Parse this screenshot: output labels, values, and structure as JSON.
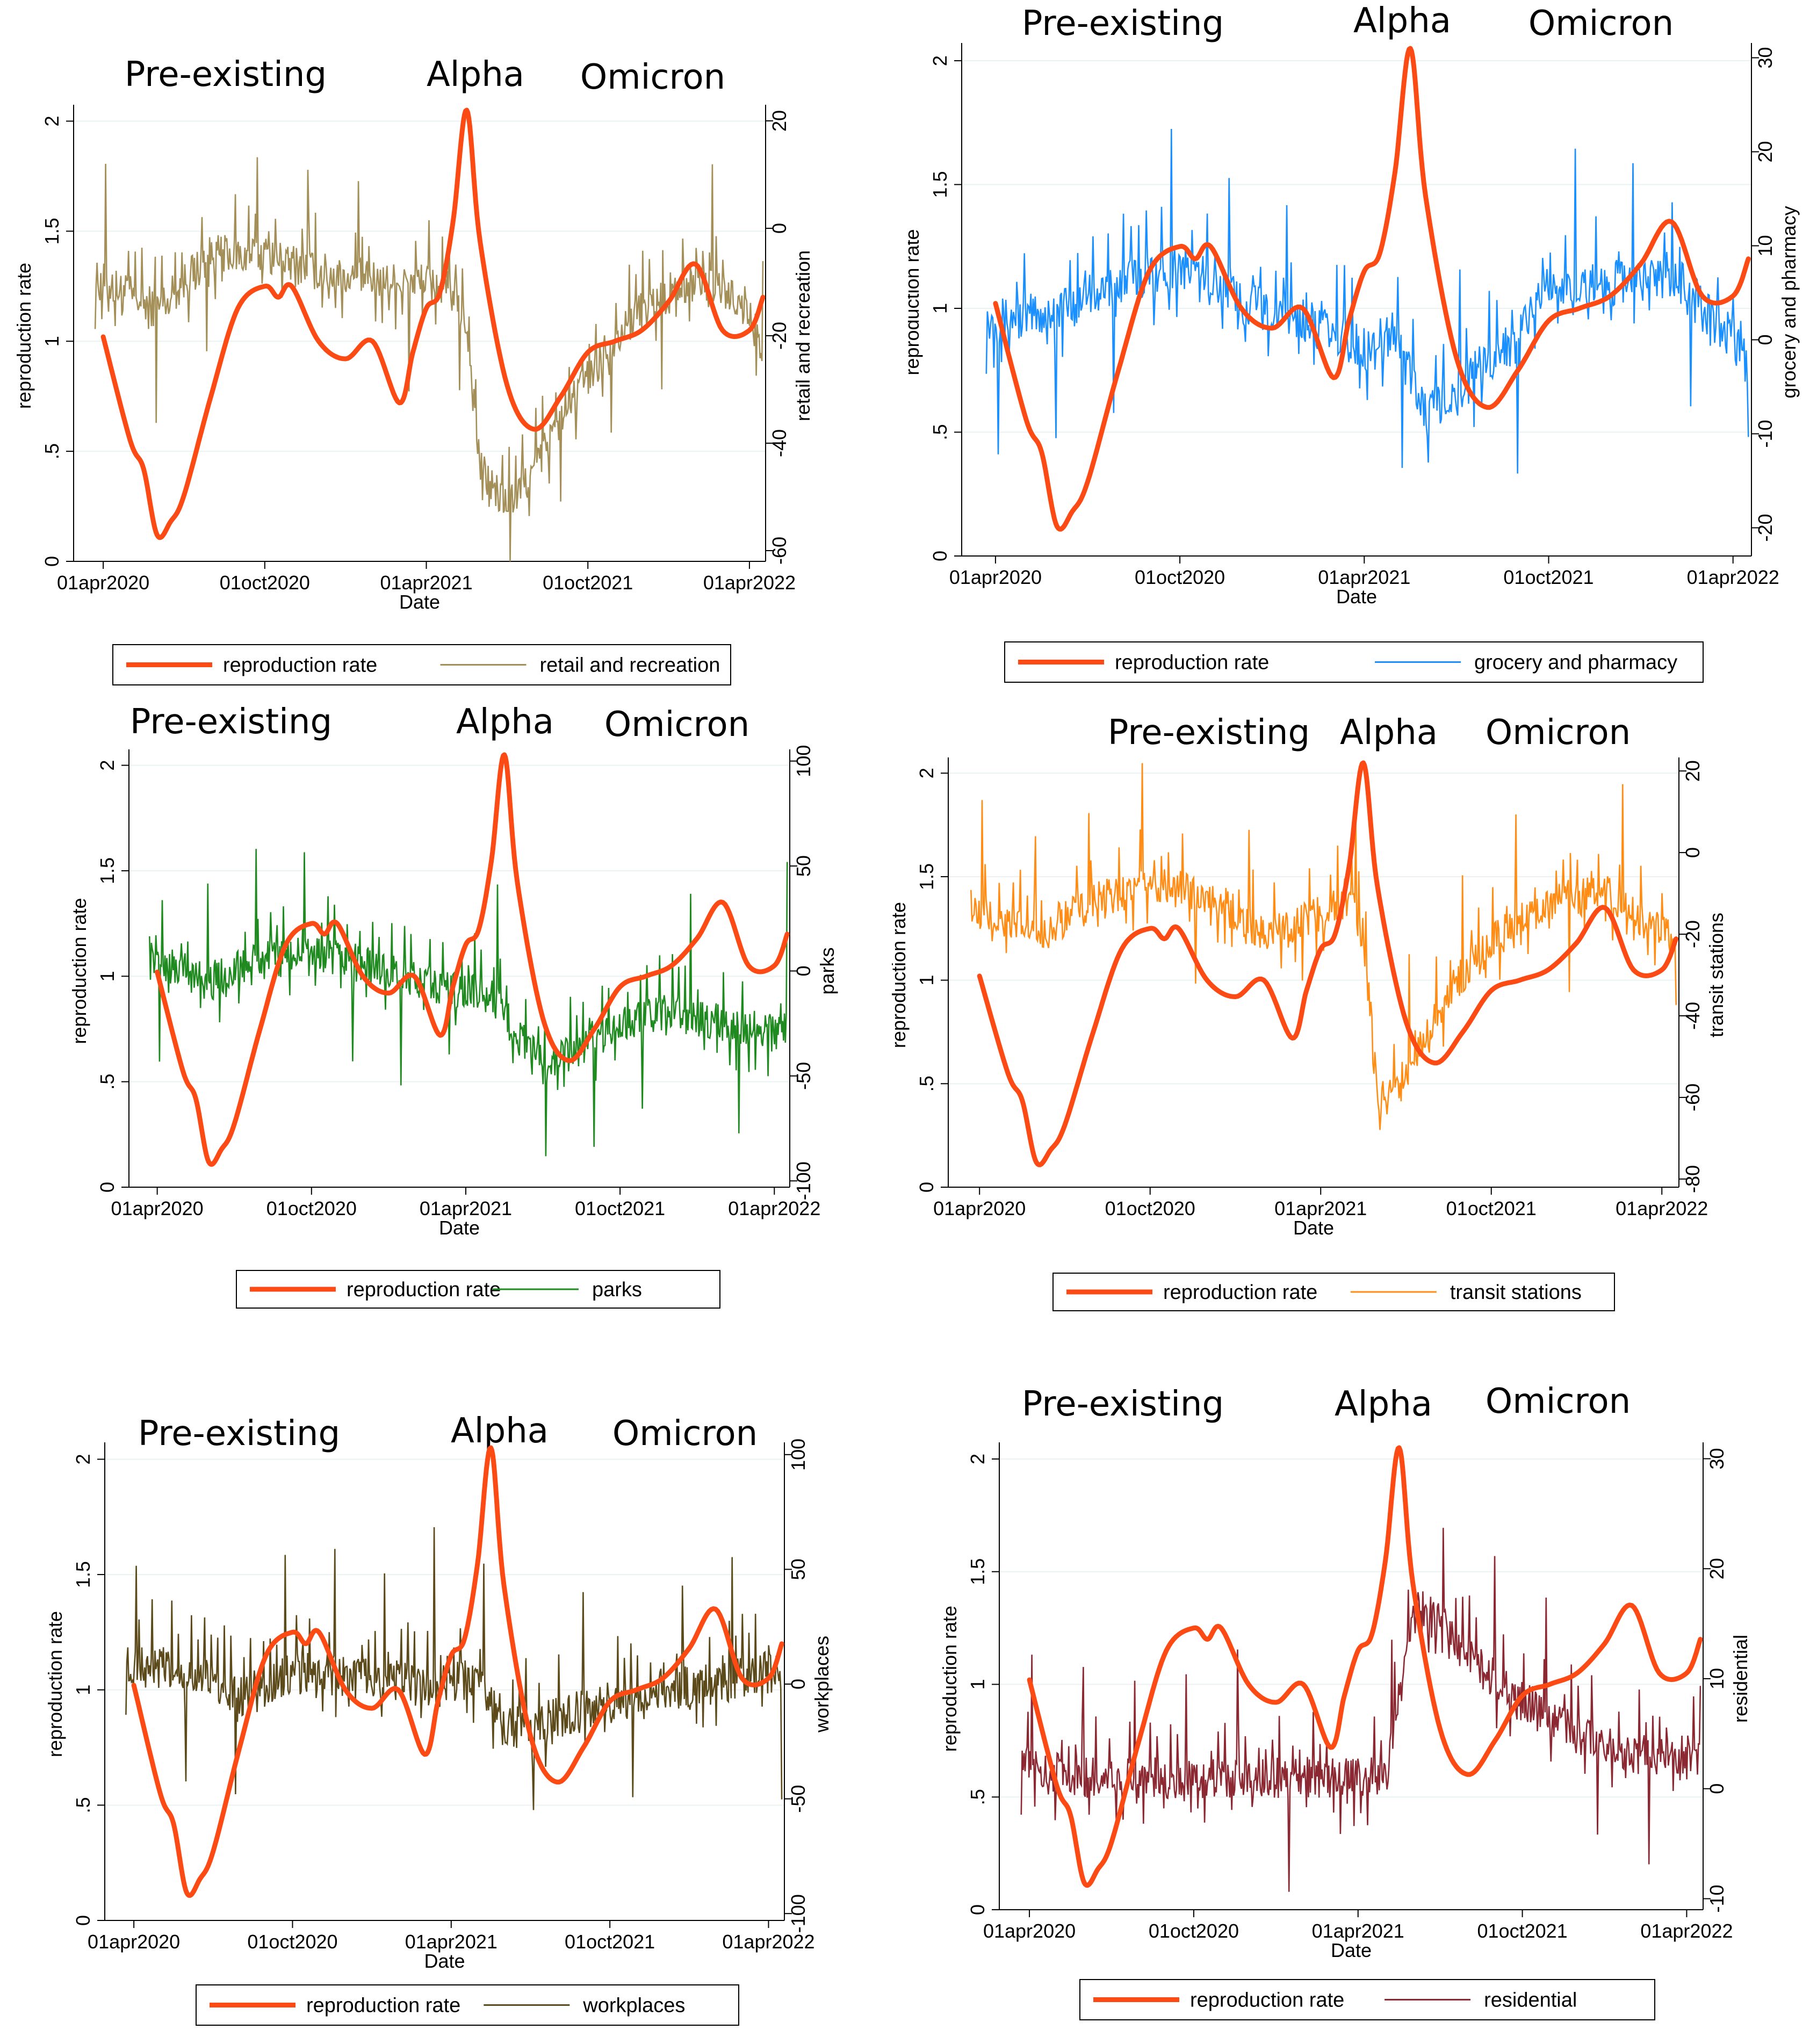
{
  "figure": {
    "x_axis_title": "Date"
  },
  "chart_data": [
    {
      "type": "line",
      "panel": "retail-and-recreation",
      "xlabel": "Date",
      "ylabel_left": "reproduction rate",
      "ylabel_right": "retail and recreation",
      "x_ticks": [
        "01apr2020",
        "01oct2020",
        "01apr2021",
        "01oct2021",
        "01apr2022"
      ],
      "y_left_ticks": [
        "0",
        ".5",
        "1",
        "1.5",
        "2"
      ],
      "y_left_range": [
        0,
        2.05
      ],
      "y_right_ticks": [
        "-60",
        "-40",
        "-20",
        "0",
        "20"
      ],
      "y_right_range": [
        -62,
        22
      ],
      "variant_labels": [
        "Pre-existing",
        "Alpha",
        "Omicron"
      ],
      "legend": [
        "reproduction rate",
        "retail and recreation"
      ],
      "series": [
        {
          "name": "reproduction rate",
          "axis": "left",
          "color": "#fc4a14",
          "x": [
            0,
            1,
            1.5,
            2,
            2.5,
            3,
            4,
            5,
            6,
            6.5,
            7,
            8,
            9,
            10,
            11,
            11.5,
            12,
            12.5,
            13,
            13.5,
            14,
            15,
            16,
            17,
            18,
            19,
            20,
            21,
            22,
            23,
            24,
            24.5
          ],
          "values": [
            1.02,
            0.55,
            0.42,
            0.12,
            0.18,
            0.3,
            0.75,
            1.15,
            1.25,
            1.2,
            1.25,
            1.0,
            0.92,
            1.0,
            0.72,
            0.95,
            1.15,
            1.22,
            1.55,
            2.05,
            1.45,
            0.8,
            0.6,
            0.75,
            0.95,
            1.0,
            1.05,
            1.18,
            1.35,
            1.05,
            1.05,
            1.2
          ]
        },
        {
          "name": "retail and recreation",
          "axis": "right",
          "color": "#a38f57",
          "x": [
            0,
            2,
            4,
            6,
            8,
            10,
            12,
            13,
            13.5,
            14,
            15,
            16,
            17,
            18,
            19,
            20,
            21,
            22,
            23,
            24,
            24.5
          ],
          "values": [
            -10,
            -15,
            -5,
            -5,
            -8,
            -10,
            -10,
            -12,
            -18,
            -45,
            -52,
            -45,
            -35,
            -28,
            -20,
            -15,
            -12,
            -10,
            -12,
            -15,
            -25
          ]
        }
      ]
    },
    {
      "type": "line",
      "panel": "grocery-and-pharmacy",
      "xlabel": "Date",
      "ylabel_left": "reproduction rate",
      "ylabel_right": "grocery and pharmacy",
      "x_ticks": [
        "01apr2020",
        "01oct2020",
        "01apr2021",
        "01oct2021",
        "01apr2022"
      ],
      "y_left_ticks": [
        "0",
        ".5",
        "1",
        "1.5",
        "2"
      ],
      "y_left_range": [
        0,
        2.05
      ],
      "y_right_ticks": [
        "-20",
        "-10",
        "0",
        "10",
        "20",
        "30"
      ],
      "y_right_range": [
        -23,
        31
      ],
      "variant_labels": [
        "Pre-existing",
        "Alpha",
        "Omicron"
      ],
      "legend": [
        "reproduction rate",
        "grocery and pharmacy"
      ],
      "series": [
        {
          "name": "reproduction rate",
          "axis": "left",
          "color": "#fc4a14",
          "x": [
            0,
            1,
            1.5,
            2,
            2.5,
            3,
            4,
            5,
            6,
            6.5,
            7,
            8,
            9,
            10,
            11,
            11.5,
            12,
            12.5,
            13,
            13.5,
            14,
            15,
            16,
            17,
            18,
            19,
            20,
            21,
            22,
            23,
            24,
            24.5
          ],
          "values": [
            1.02,
            0.55,
            0.42,
            0.12,
            0.18,
            0.3,
            0.75,
            1.15,
            1.25,
            1.2,
            1.25,
            1.0,
            0.92,
            1.0,
            0.72,
            0.95,
            1.15,
            1.22,
            1.55,
            2.05,
            1.45,
            0.8,
            0.6,
            0.75,
            0.95,
            1.0,
            1.05,
            1.18,
            1.35,
            1.05,
            1.05,
            1.2
          ]
        },
        {
          "name": "grocery and pharmacy",
          "axis": "right",
          "color": "#1a8fff",
          "x": [
            0,
            2,
            4,
            6,
            8,
            10,
            12,
            13,
            14,
            15,
            16,
            17,
            18,
            20,
            22,
            24,
            24.5
          ],
          "values": [
            2,
            3,
            6,
            8,
            4,
            2,
            -1,
            1,
            -8,
            -6,
            -2,
            0,
            6,
            6,
            7,
            0,
            -3
          ]
        }
      ]
    },
    {
      "type": "line",
      "panel": "parks",
      "xlabel": "Date",
      "ylabel_left": "reproduction rate",
      "ylabel_right": "parks",
      "x_ticks": [
        "01apr2020",
        "01oct2020",
        "01apr2021",
        "01oct2021",
        "01apr2022"
      ],
      "y_left_ticks": [
        "0",
        ".5",
        "1",
        "1.5",
        "2"
      ],
      "y_left_range": [
        0,
        2.05
      ],
      "y_right_ticks": [
        "-100",
        "-50",
        "0",
        "50",
        "100"
      ],
      "y_right_range": [
        -103,
        103
      ],
      "variant_labels": [
        "Pre-existing",
        "Alpha",
        "Omicron"
      ],
      "legend": [
        "reproduction rate",
        "parks"
      ],
      "series": [
        {
          "name": "reproduction rate",
          "axis": "left",
          "color": "#fc4a14",
          "x": [
            0,
            1,
            1.5,
            2,
            2.5,
            3,
            4,
            5,
            6,
            6.5,
            7,
            8,
            9,
            10,
            11,
            11.5,
            12,
            12.5,
            13,
            13.5,
            14,
            15,
            16,
            17,
            18,
            19,
            20,
            21,
            22,
            23,
            24,
            24.5
          ],
          "values": [
            1.02,
            0.55,
            0.42,
            0.12,
            0.18,
            0.3,
            0.75,
            1.15,
            1.25,
            1.2,
            1.25,
            1.0,
            0.92,
            1.0,
            0.72,
            0.95,
            1.15,
            1.22,
            1.55,
            2.05,
            1.45,
            0.8,
            0.6,
            0.75,
            0.95,
            1.0,
            1.05,
            1.18,
            1.35,
            1.05,
            1.05,
            1.2
          ]
        },
        {
          "name": "parks",
          "axis": "right",
          "color": "#1f8a1f",
          "x": [
            0,
            2,
            4,
            6,
            8,
            10,
            12,
            13,
            14,
            15,
            16,
            18,
            20,
            22,
            24,
            24.5
          ],
          "values": [
            5,
            -5,
            5,
            8,
            3,
            -5,
            -10,
            -12,
            -30,
            -45,
            -40,
            -25,
            -20,
            -25,
            -30,
            -25
          ]
        }
      ]
    },
    {
      "type": "line",
      "panel": "transit-stations",
      "xlabel": "Date",
      "ylabel_left": "reproduction rate",
      "ylabel_right": "transit stations",
      "x_ticks": [
        "01apr2020",
        "01oct2020",
        "01apr2021",
        "01oct2021",
        "01apr2022"
      ],
      "y_left_ticks": [
        "0",
        ".5",
        "1",
        "1.5",
        "2"
      ],
      "y_left_range": [
        0,
        2.05
      ],
      "y_right_ticks": [
        "-80",
        "-60",
        "-40",
        "-20",
        "0",
        "20"
      ],
      "y_right_range": [
        -82,
        22
      ],
      "variant_labels": [
        "Pre-existing",
        "Alpha",
        "Omicron"
      ],
      "legend": [
        "reproduction rate",
        "transit stations"
      ],
      "series": [
        {
          "name": "reproduction rate",
          "axis": "left",
          "color": "#fc4a14",
          "x": [
            0,
            1,
            1.5,
            2,
            2.5,
            3,
            4,
            5,
            6,
            6.5,
            7,
            8,
            9,
            10,
            11,
            11.5,
            12,
            12.5,
            13,
            13.5,
            14,
            15,
            16,
            17,
            18,
            19,
            20,
            21,
            22,
            23,
            24,
            24.5
          ],
          "values": [
            1.02,
            0.55,
            0.42,
            0.12,
            0.18,
            0.3,
            0.75,
            1.15,
            1.25,
            1.2,
            1.25,
            1.0,
            0.92,
            1.0,
            0.72,
            0.95,
            1.15,
            1.22,
            1.55,
            2.05,
            1.45,
            0.8,
            0.6,
            0.75,
            0.95,
            1.0,
            1.05,
            1.18,
            1.35,
            1.05,
            1.05,
            1.2
          ]
        },
        {
          "name": "transit stations",
          "axis": "right",
          "color": "#ff8c14",
          "x": [
            0,
            2,
            4,
            6,
            8,
            10,
            12,
            13,
            13.5,
            14,
            15,
            16,
            17,
            18,
            20,
            22,
            23,
            24,
            24.5
          ],
          "values": [
            -15,
            -20,
            -12,
            -8,
            -10,
            -20,
            -15,
            -12,
            -20,
            -60,
            -55,
            -40,
            -30,
            -22,
            -12,
            -10,
            -15,
            -20,
            -22
          ]
        }
      ]
    },
    {
      "type": "line",
      "panel": "workplaces",
      "xlabel": "Date",
      "ylabel_left": "reproduction rate",
      "ylabel_right": "workplaces",
      "x_ticks": [
        "01apr2020",
        "01oct2020",
        "01apr2021",
        "01oct2021",
        "01apr2022"
      ],
      "y_left_ticks": [
        "0",
        ".5",
        "1",
        "1.5",
        "2"
      ],
      "y_left_range": [
        0,
        2.05
      ],
      "y_right_ticks": [
        "-100",
        "-50",
        "0",
        "50",
        "100"
      ],
      "y_right_range": [
        -103,
        103
      ],
      "variant_labels": [
        "Pre-existing",
        "Alpha",
        "Omicron"
      ],
      "legend": [
        "reproduction rate",
        "workplaces"
      ],
      "series": [
        {
          "name": "reproduction rate",
          "axis": "left",
          "color": "#fc4a14",
          "x": [
            0,
            1,
            1.5,
            2,
            2.5,
            3,
            4,
            5,
            6,
            6.5,
            7,
            8,
            9,
            10,
            11,
            11.5,
            12,
            12.5,
            13,
            13.5,
            14,
            15,
            16,
            17,
            18,
            19,
            20,
            21,
            22,
            23,
            24,
            24.5
          ],
          "values": [
            1.02,
            0.55,
            0.42,
            0.12,
            0.18,
            0.3,
            0.75,
            1.15,
            1.25,
            1.2,
            1.25,
            1.0,
            0.92,
            1.0,
            0.72,
            0.95,
            1.15,
            1.22,
            1.55,
            2.05,
            1.45,
            0.8,
            0.6,
            0.75,
            0.95,
            1.0,
            1.05,
            1.18,
            1.35,
            1.05,
            1.05,
            1.2
          ]
        },
        {
          "name": "workplaces",
          "axis": "right",
          "color": "#5c4a1a",
          "x": [
            0,
            2,
            4,
            5,
            6,
            8,
            10,
            11,
            12,
            13,
            14,
            15,
            16,
            18,
            20,
            22,
            24,
            24.5
          ],
          "values": [
            8,
            6,
            -5,
            -2,
            5,
            4,
            2,
            -2,
            0,
            2,
            -20,
            -18,
            -15,
            -8,
            -2,
            0,
            5,
            5
          ]
        }
      ]
    },
    {
      "type": "line",
      "panel": "residential",
      "xlabel": "Date",
      "ylabel_left": "reproduction rate",
      "ylabel_right": "residential",
      "x_ticks": [
        "01apr2020",
        "01oct2020",
        "01apr2021",
        "01oct2021",
        "01apr2022"
      ],
      "y_left_ticks": [
        "0",
        ".5",
        "1",
        "1.5",
        "2"
      ],
      "y_left_range": [
        0,
        2.05
      ],
      "y_right_ticks": [
        "-10",
        "0",
        "10",
        "20",
        "30"
      ],
      "y_right_range": [
        -11,
        31
      ],
      "variant_labels": [
        "Pre-existing",
        "Alpha",
        "Omicron"
      ],
      "legend": [
        "reproduction rate",
        "residential"
      ],
      "series": [
        {
          "name": "reproduction rate",
          "axis": "left",
          "color": "#fc4a14",
          "x": [
            0,
            1,
            1.5,
            2,
            2.5,
            3,
            4,
            5,
            6,
            6.5,
            7,
            8,
            9,
            10,
            11,
            11.5,
            12,
            12.5,
            13,
            13.5,
            14,
            15,
            16,
            17,
            18,
            19,
            20,
            21,
            22,
            23,
            24,
            24.5
          ],
          "values": [
            1.02,
            0.55,
            0.42,
            0.12,
            0.18,
            0.3,
            0.75,
            1.15,
            1.25,
            1.2,
            1.25,
            1.0,
            0.92,
            1.0,
            0.72,
            0.95,
            1.15,
            1.22,
            1.55,
            2.05,
            1.45,
            0.8,
            0.6,
            0.75,
            0.95,
            1.0,
            1.05,
            1.18,
            1.35,
            1.05,
            1.05,
            1.2
          ]
        },
        {
          "name": "residential",
          "axis": "right",
          "color": "#8b2832",
          "x": [
            0,
            2,
            4,
            6,
            8,
            10,
            12,
            13,
            13.5,
            14,
            15,
            16,
            18,
            20,
            22,
            24,
            24.5
          ],
          "values": [
            2,
            1,
            1,
            1,
            1,
            1,
            1,
            1,
            8,
            17,
            15,
            12,
            8,
            5,
            3,
            3,
            3
          ]
        }
      ]
    }
  ]
}
